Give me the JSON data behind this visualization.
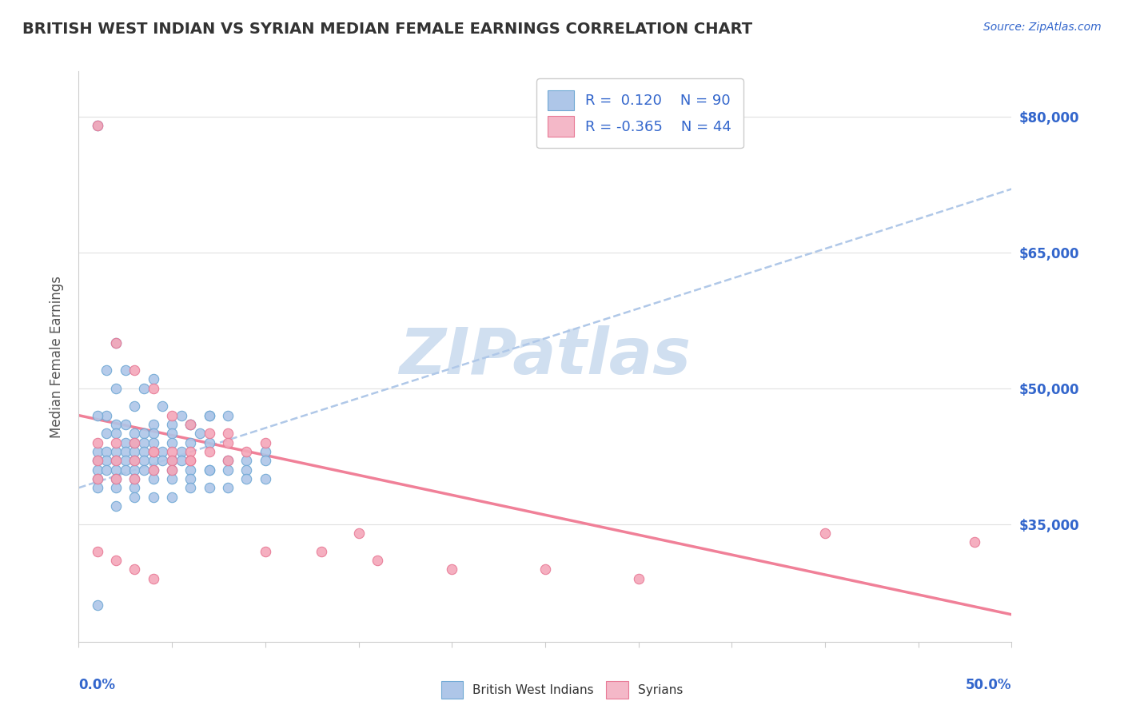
{
  "title": "BRITISH WEST INDIAN VS SYRIAN MEDIAN FEMALE EARNINGS CORRELATION CHART",
  "source_text": "Source: ZipAtlas.com",
  "ylabel": "Median Female Earnings",
  "ytick_labels": [
    "$35,000",
    "$50,000",
    "$65,000",
    "$80,000"
  ],
  "ytick_values": [
    35000,
    50000,
    65000,
    80000
  ],
  "ylim": [
    22000,
    85000
  ],
  "xlim": [
    0.0,
    0.5
  ],
  "blue_r": "0.120",
  "blue_n": "90",
  "pink_r": "-0.365",
  "pink_n": "44",
  "blue_color": "#aec6e8",
  "pink_color": "#f4a7b9",
  "blue_edge": "#6fa8d4",
  "pink_edge": "#e87a96",
  "trendline_blue_color": "#b0c8e8",
  "trendline_pink_color": "#f08098",
  "watermark_color": "#d0dff0",
  "legend_blue_face": "#aec6e8",
  "legend_pink_face": "#f4b8c8",
  "blue_scatter_x": [
    0.01,
    0.02,
    0.015,
    0.025,
    0.03,
    0.035,
    0.02,
    0.04,
    0.045,
    0.015,
    0.01,
    0.02,
    0.025,
    0.03,
    0.035,
    0.04,
    0.05,
    0.055,
    0.06,
    0.07,
    0.015,
    0.02,
    0.025,
    0.03,
    0.035,
    0.04,
    0.05,
    0.06,
    0.07,
    0.08,
    0.01,
    0.015,
    0.02,
    0.025,
    0.03,
    0.035,
    0.04,
    0.05,
    0.06,
    0.065,
    0.01,
    0.015,
    0.02,
    0.025,
    0.03,
    0.035,
    0.04,
    0.045,
    0.055,
    0.07,
    0.01,
    0.015,
    0.02,
    0.025,
    0.03,
    0.035,
    0.04,
    0.045,
    0.05,
    0.055,
    0.01,
    0.02,
    0.03,
    0.04,
    0.05,
    0.06,
    0.07,
    0.08,
    0.09,
    0.1,
    0.01,
    0.02,
    0.03,
    0.04,
    0.05,
    0.06,
    0.07,
    0.08,
    0.09,
    0.1,
    0.01,
    0.02,
    0.03,
    0.04,
    0.05,
    0.06,
    0.07,
    0.08,
    0.09,
    0.1
  ],
  "blue_scatter_y": [
    79000,
    55000,
    52000,
    52000,
    48000,
    50000,
    50000,
    51000,
    48000,
    47000,
    47000,
    46000,
    46000,
    45000,
    45000,
    46000,
    46000,
    47000,
    46000,
    47000,
    45000,
    45000,
    44000,
    44000,
    44000,
    45000,
    45000,
    46000,
    47000,
    47000,
    43000,
    43000,
    43000,
    43000,
    43000,
    43000,
    44000,
    44000,
    44000,
    45000,
    42000,
    42000,
    42000,
    42000,
    42000,
    42000,
    43000,
    43000,
    43000,
    44000,
    41000,
    41000,
    41000,
    41000,
    41000,
    41000,
    42000,
    42000,
    42000,
    42000,
    40000,
    40000,
    40000,
    41000,
    41000,
    41000,
    41000,
    42000,
    42000,
    43000,
    39000,
    39000,
    39000,
    40000,
    40000,
    40000,
    41000,
    41000,
    41000,
    42000,
    26000,
    37000,
    38000,
    38000,
    38000,
    39000,
    39000,
    39000,
    40000,
    40000
  ],
  "pink_scatter_x": [
    0.01,
    0.02,
    0.03,
    0.04,
    0.05,
    0.06,
    0.07,
    0.08,
    0.01,
    0.02,
    0.03,
    0.04,
    0.05,
    0.06,
    0.07,
    0.08,
    0.01,
    0.02,
    0.03,
    0.04,
    0.05,
    0.06,
    0.01,
    0.02,
    0.03,
    0.04,
    0.05,
    0.06,
    0.08,
    0.09,
    0.1,
    0.15,
    0.4,
    0.48,
    0.1,
    0.13,
    0.16,
    0.2,
    0.25,
    0.3,
    0.01,
    0.02,
    0.03,
    0.04
  ],
  "pink_scatter_y": [
    79000,
    55000,
    52000,
    50000,
    47000,
    46000,
    45000,
    45000,
    44000,
    44000,
    44000,
    43000,
    43000,
    43000,
    43000,
    44000,
    42000,
    42000,
    42000,
    43000,
    42000,
    42000,
    40000,
    40000,
    40000,
    41000,
    41000,
    42000,
    42000,
    43000,
    44000,
    34000,
    34000,
    33000,
    32000,
    32000,
    31000,
    30000,
    30000,
    29000,
    32000,
    31000,
    30000,
    29000
  ],
  "blue_trend_x": [
    0.0,
    0.5
  ],
  "blue_trend_y": [
    39000,
    72000
  ],
  "pink_trend_x": [
    0.0,
    0.5
  ],
  "pink_trend_y": [
    47000,
    25000
  ],
  "background_color": "#ffffff",
  "grid_color": "#e0e0e0",
  "axis_color": "#cccccc",
  "text_color": "#3366cc",
  "label_color": "#555555"
}
